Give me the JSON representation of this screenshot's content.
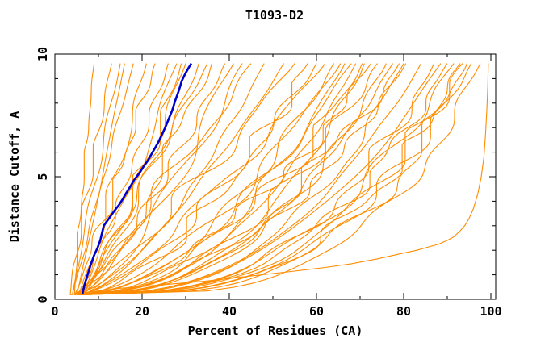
{
  "window": {
    "background": "#ffffff"
  },
  "chart_data": {
    "type": "line",
    "title": "T1093-D2",
    "xlabel": "Percent of Residues (CA)",
    "ylabel": "Distance Cutoff, A",
    "xlim": [
      0,
      100
    ],
    "ylim": [
      0,
      10
    ],
    "x_major_ticks": [
      0,
      20,
      40,
      60,
      80,
      100
    ],
    "x_minor_step": 10,
    "y_major_ticks": [
      0,
      5,
      10
    ],
    "y_minor_step": 1,
    "grid": false,
    "legend_position": "none",
    "tick_style": "inward-all-four-sides",
    "colors": {
      "models": "#ff8c00",
      "highlight": "#0000cc",
      "axis": "#000000",
      "background": "#ffffff"
    },
    "highlight_series": {
      "name": "highlighted-model",
      "color": "#0000cc",
      "points_percent_cutoff": [
        [
          6.3,
          0.2
        ],
        [
          6.8,
          0.6
        ],
        [
          7.5,
          1.0
        ],
        [
          8.2,
          1.4
        ],
        [
          9.0,
          1.8
        ],
        [
          9.8,
          2.1
        ],
        [
          10.4,
          2.4
        ],
        [
          10.8,
          2.7
        ],
        [
          11.2,
          3.0
        ],
        [
          12.4,
          3.3
        ],
        [
          13.6,
          3.6
        ],
        [
          14.7,
          3.85
        ],
        [
          15.6,
          4.1
        ],
        [
          16.4,
          4.35
        ],
        [
          17.3,
          4.6
        ],
        [
          18.3,
          4.9
        ],
        [
          19.4,
          5.15
        ],
        [
          20.3,
          5.4
        ],
        [
          21.3,
          5.65
        ],
        [
          22.1,
          5.9
        ],
        [
          22.9,
          6.15
        ],
        [
          23.7,
          6.4
        ],
        [
          24.5,
          6.7
        ],
        [
          25.3,
          7.0
        ],
        [
          26.1,
          7.35
        ],
        [
          26.9,
          7.7
        ],
        [
          27.6,
          8.1
        ],
        [
          28.4,
          8.5
        ],
        [
          29.1,
          8.9
        ],
        [
          29.9,
          9.2
        ],
        [
          30.7,
          9.45
        ],
        [
          31.3,
          9.62
        ]
      ]
    },
    "outlier_series": {
      "name": "low-accuracy-model",
      "color": "#ff8c00",
      "points_percent_cutoff": [
        [
          3.5,
          0.18
        ],
        [
          8,
          0.3
        ],
        [
          15,
          0.45
        ],
        [
          25,
          0.6
        ],
        [
          35,
          0.75
        ],
        [
          45,
          0.95
        ],
        [
          55,
          1.15
        ],
        [
          62,
          1.3
        ],
        [
          68,
          1.45
        ],
        [
          74,
          1.65
        ],
        [
          79,
          1.85
        ],
        [
          83,
          2.0
        ],
        [
          86,
          2.15
        ],
        [
          88,
          2.25
        ],
        [
          90,
          2.4
        ],
        [
          91.5,
          2.55
        ],
        [
          93,
          2.8
        ],
        [
          94,
          3.0
        ],
        [
          95,
          3.3
        ],
        [
          96,
          3.7
        ],
        [
          97,
          4.3
        ],
        [
          97.8,
          5.0
        ],
        [
          98.4,
          5.8
        ],
        [
          98.8,
          6.8
        ],
        [
          99.1,
          7.8
        ],
        [
          99.3,
          8.7
        ],
        [
          99.4,
          9.62
        ]
      ]
    },
    "model_curves": {
      "name": "model-curves",
      "color": "#ff8c00",
      "cutoff_min": 0.18,
      "cutoff_max": 9.62,
      "definition": "percent(d) = start_percent + (top_percent - start_percent) * t^shape_exponent, t normalized cutoff",
      "curves": [
        {
          "start_percent": 4.5,
          "top_percent": 9.0,
          "shape_exponent": 1.2
        },
        {
          "start_percent": 3.5,
          "top_percent": 13.0,
          "shape_exponent": 1.1
        },
        {
          "start_percent": 4.0,
          "top_percent": 15.0,
          "shape_exponent": 1.05
        },
        {
          "start_percent": 5.0,
          "top_percent": 16.0,
          "shape_exponent": 0.95
        },
        {
          "start_percent": 4.0,
          "top_percent": 18.0,
          "shape_exponent": 1.0
        },
        {
          "start_percent": 5.5,
          "top_percent": 21.0,
          "shape_exponent": 0.9
        },
        {
          "start_percent": 4.5,
          "top_percent": 23.0,
          "shape_exponent": 0.95
        },
        {
          "start_percent": 5.0,
          "top_percent": 26.0,
          "shape_exponent": 0.85
        },
        {
          "start_percent": 6.0,
          "top_percent": 28.0,
          "shape_exponent": 0.9
        },
        {
          "start_percent": 5.0,
          "top_percent": 29.0,
          "shape_exponent": 0.75
        },
        {
          "start_percent": 6.5,
          "top_percent": 30.0,
          "shape_exponent": 0.85
        },
        {
          "start_percent": 5.5,
          "top_percent": 33.0,
          "shape_exponent": 0.8
        },
        {
          "start_percent": 6.5,
          "top_percent": 35.0,
          "shape_exponent": 1.0
        },
        {
          "start_percent": 4.5,
          "top_percent": 36.0,
          "shape_exponent": 0.75
        },
        {
          "start_percent": 6.0,
          "top_percent": 39.0,
          "shape_exponent": 0.8
        },
        {
          "start_percent": 5.0,
          "top_percent": 41.0,
          "shape_exponent": 0.7
        },
        {
          "start_percent": 6.5,
          "top_percent": 43.0,
          "shape_exponent": 0.75
        },
        {
          "start_percent": 5.0,
          "top_percent": 45.0,
          "shape_exponent": 0.9
        },
        {
          "start_percent": 5.5,
          "top_percent": 48.0,
          "shape_exponent": 0.65
        },
        {
          "start_percent": 4.5,
          "top_percent": 52.5,
          "shape_exponent": 0.7
        },
        {
          "start_percent": 4.0,
          "top_percent": 55.0,
          "shape_exponent": 0.8
        },
        {
          "start_percent": 6.0,
          "top_percent": 58.0,
          "shape_exponent": 0.6
        },
        {
          "start_percent": 5.0,
          "top_percent": 60.0,
          "shape_exponent": 0.65
        },
        {
          "start_percent": 6.0,
          "top_percent": 62.0,
          "shape_exponent": 0.75
        },
        {
          "start_percent": 6.5,
          "top_percent": 64.0,
          "shape_exponent": 0.55
        },
        {
          "start_percent": 5.5,
          "top_percent": 65.5,
          "shape_exponent": 0.6
        },
        {
          "start_percent": 7.0,
          "top_percent": 66.5,
          "shape_exponent": 0.5
        },
        {
          "start_percent": 5.0,
          "top_percent": 68.0,
          "shape_exponent": 0.55
        },
        {
          "start_percent": 6.0,
          "top_percent": 69.0,
          "shape_exponent": 0.45
        },
        {
          "start_percent": 5.5,
          "top_percent": 70.5,
          "shape_exponent": 0.5
        },
        {
          "start_percent": 7.0,
          "top_percent": 71.0,
          "shape_exponent": 0.42
        },
        {
          "start_percent": 4.5,
          "top_percent": 72.5,
          "shape_exponent": 0.55
        },
        {
          "start_percent": 6.0,
          "top_percent": 74.0,
          "shape_exponent": 0.48
        },
        {
          "start_percent": 5.0,
          "top_percent": 76.0,
          "shape_exponent": 0.4
        },
        {
          "start_percent": 6.5,
          "top_percent": 77.5,
          "shape_exponent": 0.45
        },
        {
          "start_percent": 5.5,
          "top_percent": 79.0,
          "shape_exponent": 0.5
        },
        {
          "start_percent": 7.0,
          "top_percent": 80.0,
          "shape_exponent": 0.38
        },
        {
          "start_percent": 5.0,
          "top_percent": 80.5,
          "shape_exponent": 0.45
        },
        {
          "start_percent": 6.0,
          "top_percent": 84.0,
          "shape_exponent": 0.4
        },
        {
          "start_percent": 5.5,
          "top_percent": 87.0,
          "shape_exponent": 0.35
        },
        {
          "start_percent": 6.5,
          "top_percent": 88.5,
          "shape_exponent": 0.42
        },
        {
          "start_percent": 5.0,
          "top_percent": 90.0,
          "shape_exponent": 0.35
        },
        {
          "start_percent": 6.0,
          "top_percent": 91.5,
          "shape_exponent": 0.38
        },
        {
          "start_percent": 5.5,
          "top_percent": 93.0,
          "shape_exponent": 0.32
        },
        {
          "start_percent": 7.0,
          "top_percent": 93.5,
          "shape_exponent": 0.36
        },
        {
          "start_percent": 5.0,
          "top_percent": 94.5,
          "shape_exponent": 0.3
        },
        {
          "start_percent": 6.0,
          "top_percent": 95.5,
          "shape_exponent": 0.34
        },
        {
          "start_percent": 5.5,
          "top_percent": 97.6,
          "shape_exponent": 0.28
        }
      ]
    }
  }
}
